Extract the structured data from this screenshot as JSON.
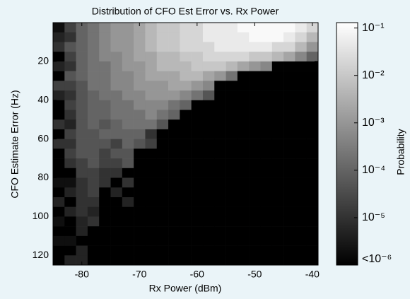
{
  "chart_data": {
    "type": "heatmap",
    "title": "Distribution of CFO Est Error vs. Rx Power",
    "xlabel": "Rx Power (dBm)",
    "ylabel": "CFO Estimate Error (Hz)",
    "x": [
      -84,
      -82,
      -80,
      -78,
      -76,
      -74,
      -72,
      -70,
      -68,
      -66,
      -64,
      -62,
      -60,
      -58,
      -56,
      -54,
      -52,
      -50,
      -48,
      -46,
      -44,
      -42,
      -40
    ],
    "y": [
      2.5,
      7.5,
      12.5,
      17.5,
      22.5,
      27.5,
      32.5,
      37.5,
      42.5,
      47.5,
      52.5,
      57.5,
      62.5,
      67.5,
      72.5,
      77.5,
      82.5,
      87.5,
      92.5,
      97.5,
      102.5,
      107.5,
      112.5,
      117.5,
      122.5
    ],
    "z": [
      [
        2e-06,
        2e-05,
        0.0001,
        0.0002,
        0.0005,
        0.001,
        0.001,
        0.002,
        0.005,
        0.01,
        0.01,
        0.02,
        0.02,
        0.05,
        0.05,
        0.05,
        0.1,
        0.1,
        0.1,
        0.1,
        0.1,
        0.05,
        0.02
      ],
      [
        5e-06,
        1e-05,
        0.0001,
        0.0002,
        0.0005,
        0.001,
        0.001,
        0.002,
        0.005,
        0.01,
        0.01,
        0.02,
        0.02,
        0.05,
        0.05,
        0.05,
        0.05,
        0.1,
        0.1,
        0.1,
        0.05,
        0.02,
        0.005
      ],
      [
        1e-05,
        5e-05,
        0.0001,
        0.0002,
        0.0005,
        0.001,
        0.001,
        0.002,
        0.005,
        0.01,
        0.01,
        0.02,
        0.02,
        0.02,
        0.05,
        0.05,
        0.05,
        0.05,
        0.05,
        0.02,
        0.02,
        0.005,
        0.001
      ],
      [
        0,
        2e-05,
        0.0001,
        0.0002,
        0.0005,
        0.0005,
        0.001,
        0.002,
        0.002,
        0.005,
        0.005,
        0.01,
        0.01,
        0.02,
        0.02,
        0.02,
        0.02,
        0.01,
        0.01,
        0.005,
        0.002,
        0.0005,
        0.0001
      ],
      [
        5e-06,
        1e-05,
        0.0001,
        0.0002,
        0.0002,
        0.0005,
        0.001,
        0.001,
        0.002,
        0.005,
        0.005,
        0.005,
        0.01,
        0.01,
        0.01,
        0.005,
        0.002,
        0.001,
        0.0005,
        0,
        0,
        0,
        0
      ],
      [
        0,
        5e-05,
        0.0001,
        0.0002,
        0.0002,
        0.0005,
        0.0005,
        0.001,
        0.002,
        0.002,
        0.002,
        0.005,
        0.005,
        0.002,
        0.001,
        0.0002,
        0,
        0,
        0,
        0,
        0,
        0,
        0
      ],
      [
        2e-05,
        2e-05,
        5e-05,
        0.0002,
        0.0002,
        0.0005,
        0.0005,
        0.001,
        0.001,
        0.001,
        0.002,
        0.002,
        0.001,
        0.0005,
        0,
        0,
        0,
        0,
        0,
        0,
        0,
        0,
        0
      ],
      [
        5e-06,
        1e-05,
        5e-05,
        0.0001,
        0.0002,
        0.0002,
        0.0005,
        0.0005,
        0.001,
        0.001,
        0.001,
        0.0005,
        0.0002,
        5e-05,
        0,
        0,
        0,
        0,
        0,
        0,
        0,
        0,
        0
      ],
      [
        0,
        2e-05,
        5e-05,
        0.0001,
        0.0001,
        0.0002,
        0.0002,
        0.0005,
        0.0005,
        0.0005,
        0.0002,
        0.0001,
        0,
        0,
        0,
        0,
        0,
        0,
        0,
        0,
        0,
        0,
        0
      ],
      [
        0,
        1e-05,
        5e-05,
        0.0001,
        0.0001,
        0.0002,
        0.0002,
        0.0002,
        0.0005,
        0.0002,
        0.0001,
        0,
        0,
        0,
        0,
        0,
        0,
        0,
        0,
        0,
        0,
        0,
        0
      ],
      [
        1e-05,
        5e-06,
        5e-05,
        0.0001,
        5e-05,
        0.0001,
        0.0002,
        0.0002,
        0.0002,
        5e-05,
        0,
        0,
        0,
        0,
        0,
        0,
        0,
        0,
        0,
        0,
        0,
        0,
        0
      ],
      [
        0,
        2e-05,
        5e-05,
        5e-05,
        0.0001,
        0.0001,
        0.0001,
        0.0001,
        1e-05,
        0,
        0,
        0,
        0,
        0,
        0,
        0,
        0,
        0,
        0,
        0,
        0,
        0,
        0
      ],
      [
        1e-05,
        1e-05,
        5e-05,
        5e-05,
        5e-05,
        2e-05,
        0.0001,
        5e-05,
        2e-05,
        0,
        0,
        0,
        0,
        0,
        0,
        0,
        0,
        0,
        0,
        0,
        0,
        0,
        0
      ],
      [
        0,
        2e-05,
        5e-05,
        5e-05,
        2e-05,
        5e-05,
        5e-05,
        0,
        0,
        0,
        0,
        0,
        0,
        0,
        0,
        0,
        0,
        0,
        0,
        0,
        0,
        0,
        0
      ],
      [
        0,
        1e-05,
        2e-05,
        5e-05,
        2e-05,
        2e-05,
        5e-05,
        0,
        0,
        0,
        0,
        0,
        0,
        0,
        0,
        0,
        0,
        0,
        0,
        0,
        0,
        0,
        0
      ],
      [
        0,
        0,
        2e-05,
        2e-05,
        1e-05,
        1e-05,
        0,
        0,
        0,
        0,
        0,
        0,
        0,
        0,
        0,
        0,
        0,
        0,
        0,
        0,
        0,
        0,
        0
      ],
      [
        2e-06,
        2e-06,
        1e-05,
        2e-05,
        1e-05,
        0,
        1e-05,
        0,
        0,
        0,
        0,
        0,
        0,
        0,
        0,
        0,
        0,
        0,
        0,
        0,
        0,
        0,
        0
      ],
      [
        0,
        5e-06,
        1e-05,
        2e-05,
        0,
        5e-06,
        0,
        0,
        0,
        0,
        0,
        0,
        0,
        0,
        0,
        0,
        0,
        0,
        0,
        0,
        0,
        0,
        0
      ],
      [
        5e-06,
        0,
        1e-05,
        1e-05,
        0,
        0,
        5e-06,
        0,
        0,
        0,
        0,
        0,
        0,
        0,
        0,
        0,
        0,
        0,
        0,
        0,
        0,
        0,
        0
      ],
      [
        0,
        5e-06,
        1e-05,
        5e-06,
        0,
        0,
        0,
        0,
        0,
        0,
        0,
        0,
        0,
        0,
        0,
        0,
        0,
        0,
        0,
        0,
        0,
        0,
        0
      ],
      [
        2e-06,
        0,
        5e-06,
        1e-05,
        0,
        0,
        0,
        0,
        0,
        0,
        0,
        0,
        0,
        0,
        0,
        0,
        0,
        0,
        0,
        0,
        0,
        0,
        0
      ],
      [
        0,
        0,
        5e-06,
        0,
        0,
        0,
        0,
        0,
        0,
        0,
        0,
        0,
        0,
        0,
        0,
        0,
        0,
        0,
        0,
        0,
        0,
        0,
        0
      ],
      [
        2e-06,
        2e-06,
        0,
        0,
        0,
        0,
        0,
        0,
        0,
        0,
        0,
        0,
        0,
        0,
        0,
        0,
        0,
        0,
        0,
        0,
        0,
        0,
        0
      ],
      [
        0,
        0,
        5e-06,
        0,
        0,
        0,
        0,
        0,
        0,
        0,
        0,
        0,
        0,
        0,
        0,
        0,
        0,
        0,
        0,
        0,
        0,
        0,
        0
      ],
      [
        0,
        5e-06,
        5e-06,
        0,
        0,
        0,
        0,
        0,
        0,
        0,
        0,
        0,
        0,
        0,
        0,
        0,
        0,
        0,
        0,
        0,
        0,
        0,
        0
      ]
    ],
    "xlim": [
      -85,
      -39
    ],
    "xticks": [
      -80,
      -70,
      -60,
      -50,
      -40
    ],
    "ylim": [
      0,
      125
    ],
    "y_reversed": true,
    "yticks": [
      20,
      40,
      60,
      80,
      100,
      120
    ],
    "colormap": "gray",
    "colorbar": {
      "label": "Probability",
      "log": true,
      "lim": [
        1e-06,
        0.13
      ],
      "ticks": [
        {
          "value": 0.1,
          "label": "10⁻¹"
        },
        {
          "value": 0.01,
          "label": "10⁻²"
        },
        {
          "value": 0.001,
          "label": "10⁻³"
        },
        {
          "value": 0.0001,
          "label": "10⁻⁴"
        },
        {
          "value": 1e-05,
          "label": "10⁻⁵"
        },
        {
          "value": 1e-06,
          "label": "<10⁻⁶"
        }
      ]
    }
  }
}
